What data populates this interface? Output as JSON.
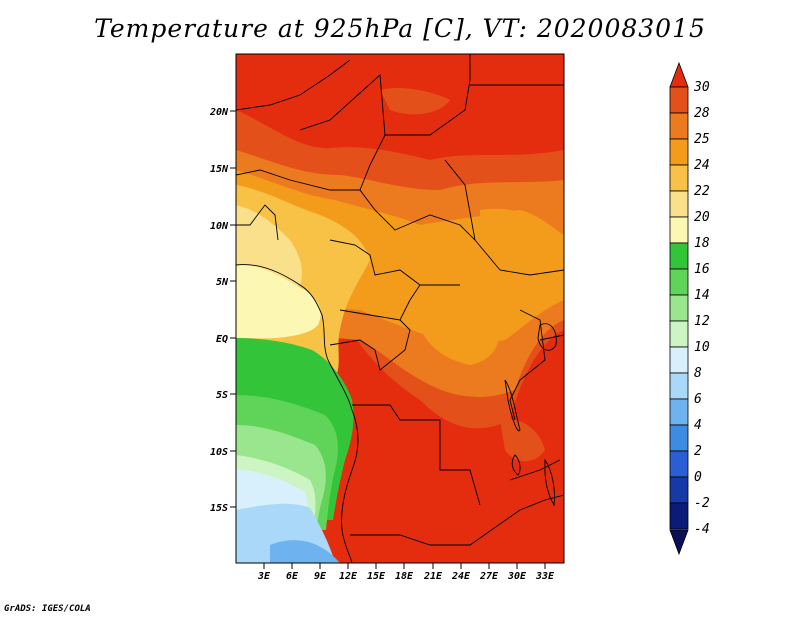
{
  "title": "Temperature at 925hPa [C], VT: 2020083015",
  "credit": "GrADS: IGES/COLA",
  "map": {
    "lat_labels": [
      "20N",
      "15N",
      "10N",
      "5N",
      "EQ",
      "5S",
      "10S",
      "15S"
    ],
    "lon_labels": [
      "3E",
      "6E",
      "9E",
      "12E",
      "15E",
      "18E",
      "21E",
      "24E",
      "27E",
      "30E",
      "33E"
    ]
  },
  "colorbar": {
    "labels": [
      "30",
      "28",
      "25",
      "24",
      "22",
      "20",
      "18",
      "16",
      "14",
      "12",
      "10",
      "8",
      "6",
      "4",
      "2",
      "0",
      "-2",
      "-4"
    ],
    "colors": [
      "#e42d0e",
      "#e4501a",
      "#ec7a1e",
      "#f39c1c",
      "#f8c246",
      "#fbe08c",
      "#fdf7b4",
      "#34c43a",
      "#5fd458",
      "#9ae68e",
      "#cdf5c4",
      "#d8f0fc",
      "#a9d8f8",
      "#6fb2f0",
      "#3e8ce2",
      "#2a5ed4",
      "#153aa8",
      "#0b1c78",
      "#0a1055"
    ]
  }
}
